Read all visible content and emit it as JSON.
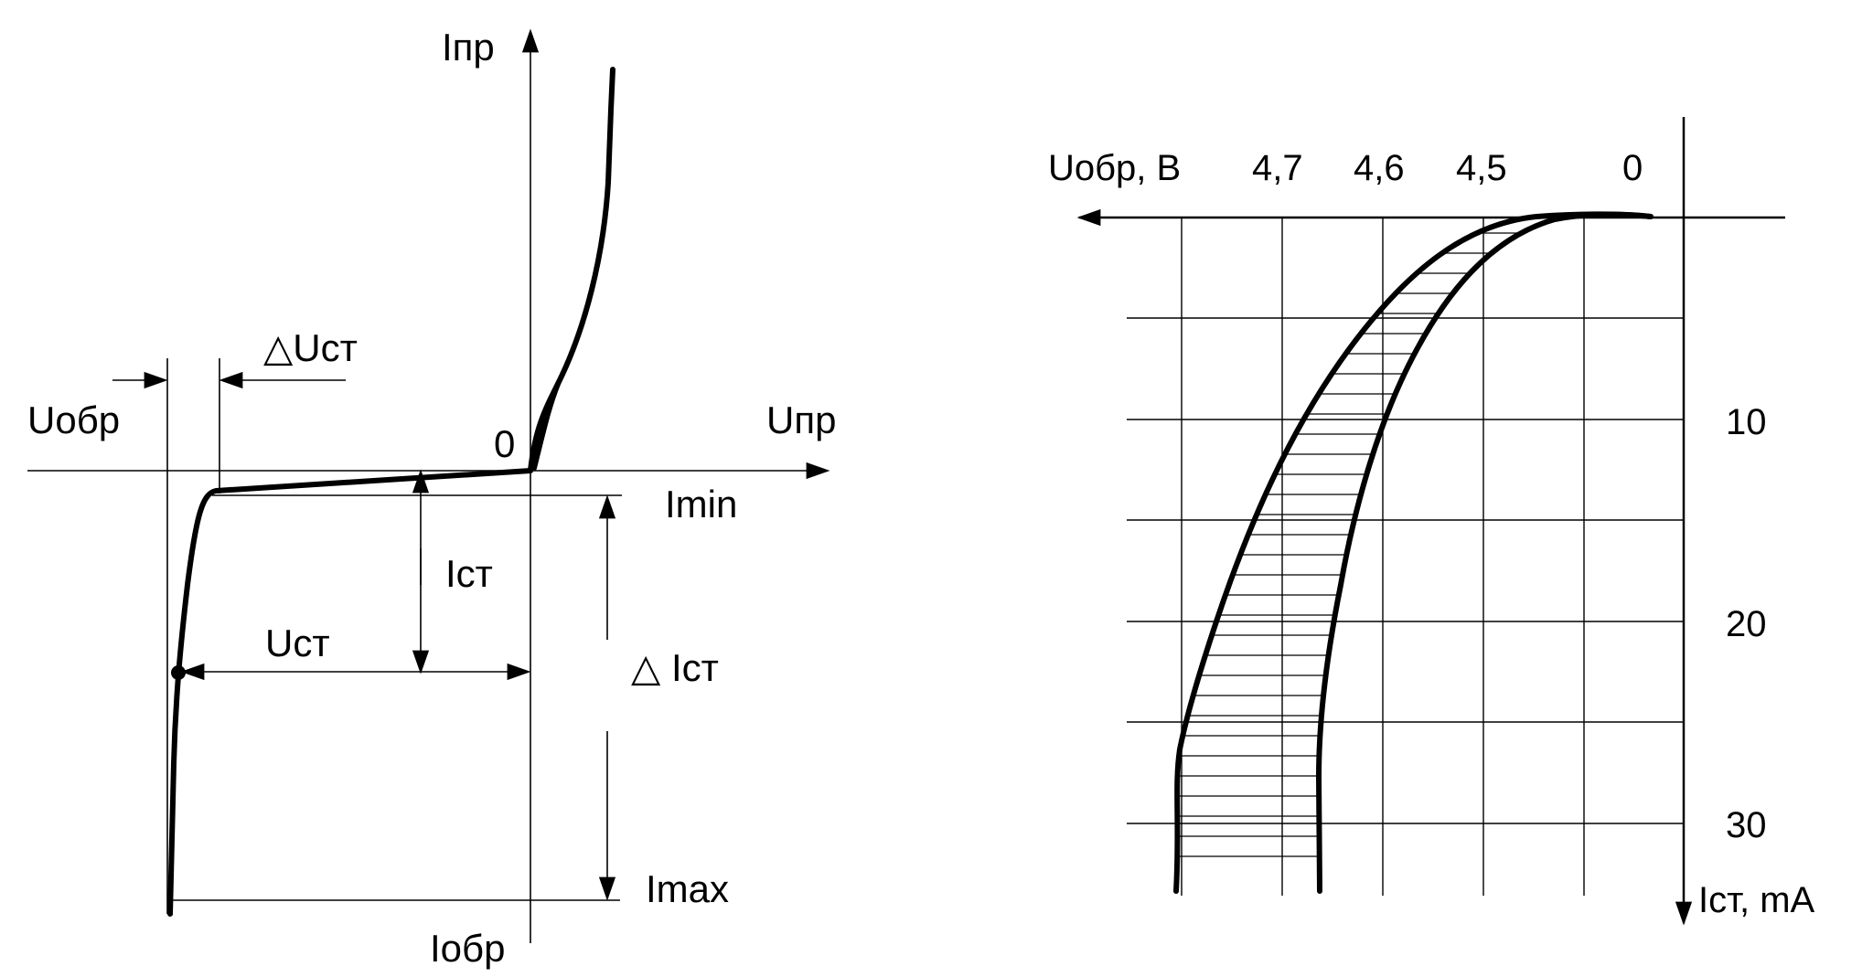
{
  "left_diagram": {
    "labels": {
      "i_forward": "Iпр",
      "u_forward": "Uпр",
      "u_reverse": "Uобр",
      "i_reverse": "Iобр",
      "origin": "0",
      "delta_u_st": "△Uст",
      "i_min": "Imin",
      "i_st": "Iст",
      "u_st": "Uст",
      "delta_i_st": "△ Iст",
      "i_max": "Imax"
    }
  },
  "right_diagram": {
    "x_axis_label": "Uобр, В",
    "y_axis_label": "Iст, mA",
    "x_ticks": [
      "4,7",
      "4,6",
      "4,5",
      "0"
    ],
    "y_ticks": [
      "10",
      "20",
      "30"
    ]
  }
}
